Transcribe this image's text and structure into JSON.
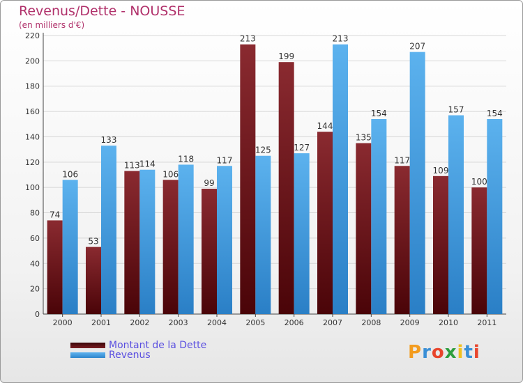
{
  "chart_data": {
    "type": "bar",
    "title": "Revenus/Dette - NOUSSE",
    "subtitle": "(en milliers d'€)",
    "categories": [
      "2000",
      "2001",
      "2002",
      "2003",
      "2004",
      "2005",
      "2006",
      "2007",
      "2008",
      "2009",
      "2010",
      "2011"
    ],
    "series": [
      {
        "name": "Montant de la Dette",
        "color": "#7a1e22",
        "values": [
          74,
          53,
          113,
          106,
          99,
          213,
          199,
          144,
          135,
          117,
          109,
          100
        ]
      },
      {
        "name": "Revenus",
        "color": "#3e9be0",
        "values": [
          106,
          133,
          114,
          118,
          117,
          125,
          127,
          213,
          154,
          207,
          157,
          154
        ]
      }
    ],
    "ylim": [
      0,
      220
    ],
    "yticks": [
      0,
      20,
      40,
      60,
      80,
      100,
      120,
      140,
      160,
      180,
      200,
      220
    ],
    "grid": true,
    "legend_position": "bottom-left"
  },
  "logo": {
    "letters": [
      "P",
      "r",
      "o",
      "x",
      "i",
      "t",
      "i"
    ],
    "colors": [
      "#f39c1f",
      "#3a8fd6",
      "#e8452c",
      "#2e9e3e",
      "#f0c020",
      "#3a8fd6",
      "#e8452c"
    ]
  }
}
